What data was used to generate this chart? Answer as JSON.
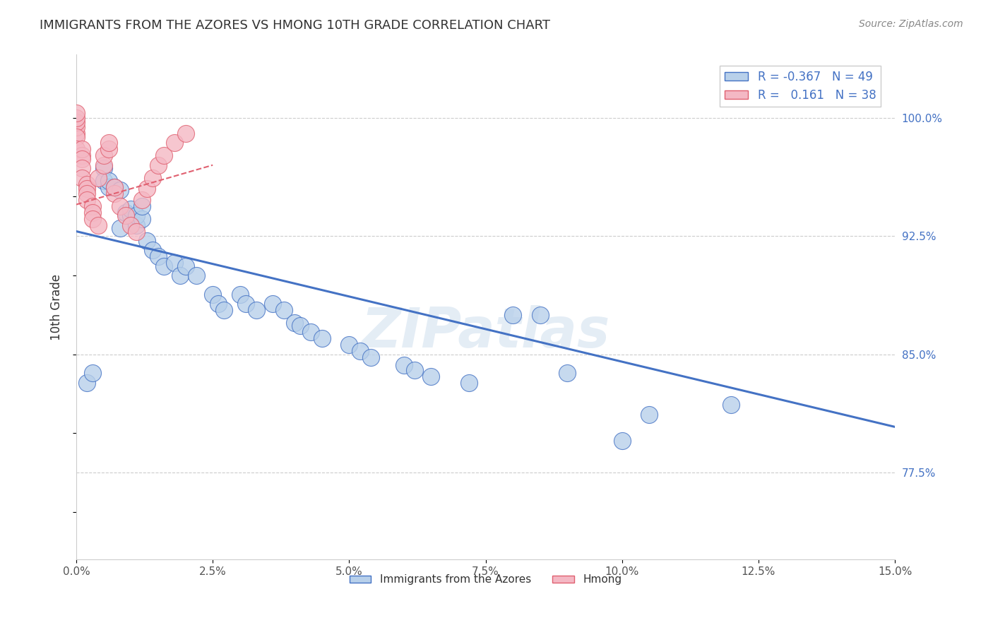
{
  "title": "IMMIGRANTS FROM THE AZORES VS HMONG 10TH GRADE CORRELATION CHART",
  "source": "Source: ZipAtlas.com",
  "ylabel": "10th Grade",
  "ytick_labels": [
    "77.5%",
    "85.0%",
    "92.5%",
    "100.0%"
  ],
  "ytick_values": [
    0.775,
    0.85,
    0.925,
    1.0
  ],
  "xmin": 0.0,
  "xmax": 0.15,
  "ymin": 0.72,
  "ymax": 1.04,
  "legend_R_blue": "-0.367",
  "legend_N_blue": "49",
  "legend_R_pink": "0.161",
  "legend_N_pink": "38",
  "blue_fill": "#b8d0ea",
  "pink_fill": "#f4b8c4",
  "line_blue": "#4472c4",
  "line_pink": "#e06070",
  "watermark": "ZIPatlas",
  "blue_scatter_x": [
    0.002,
    0.003,
    0.005,
    0.005,
    0.006,
    0.006,
    0.007,
    0.008,
    0.008,
    0.009,
    0.01,
    0.01,
    0.011,
    0.011,
    0.012,
    0.012,
    0.013,
    0.014,
    0.015,
    0.016,
    0.018,
    0.019,
    0.02,
    0.022,
    0.025,
    0.026,
    0.027,
    0.03,
    0.031,
    0.033,
    0.036,
    0.038,
    0.04,
    0.041,
    0.043,
    0.045,
    0.05,
    0.052,
    0.054,
    0.06,
    0.062,
    0.065,
    0.072,
    0.08,
    0.085,
    0.09,
    0.1,
    0.105,
    0.12
  ],
  "blue_scatter_y": [
    0.832,
    0.838,
    0.968,
    0.96,
    0.956,
    0.96,
    0.956,
    0.93,
    0.954,
    0.94,
    0.938,
    0.942,
    0.932,
    0.938,
    0.936,
    0.944,
    0.922,
    0.916,
    0.912,
    0.906,
    0.908,
    0.9,
    0.906,
    0.9,
    0.888,
    0.882,
    0.878,
    0.888,
    0.882,
    0.878,
    0.882,
    0.878,
    0.87,
    0.868,
    0.864,
    0.86,
    0.856,
    0.852,
    0.848,
    0.843,
    0.84,
    0.836,
    0.832,
    0.875,
    0.875,
    0.838,
    0.795,
    0.812,
    0.818
  ],
  "pink_scatter_x": [
    0.0,
    0.0,
    0.0,
    0.0,
    0.0,
    0.0,
    0.0,
    0.001,
    0.001,
    0.001,
    0.001,
    0.001,
    0.002,
    0.002,
    0.002,
    0.002,
    0.003,
    0.003,
    0.003,
    0.004,
    0.004,
    0.005,
    0.005,
    0.006,
    0.006,
    0.007,
    0.007,
    0.008,
    0.009,
    0.01,
    0.011,
    0.012,
    0.013,
    0.014,
    0.015,
    0.016,
    0.018,
    0.02
  ],
  "pink_scatter_y": [
    0.99,
    0.994,
    0.997,
    1.0,
    1.003,
    0.988,
    0.98,
    0.976,
    0.98,
    0.974,
    0.968,
    0.962,
    0.958,
    0.955,
    0.952,
    0.948,
    0.944,
    0.94,
    0.936,
    0.932,
    0.962,
    0.97,
    0.976,
    0.98,
    0.984,
    0.952,
    0.956,
    0.944,
    0.938,
    0.932,
    0.928,
    0.948,
    0.955,
    0.962,
    0.97,
    0.976,
    0.984,
    0.99
  ],
  "blue_line_x": [
    0.0,
    0.15
  ],
  "blue_line_y": [
    0.928,
    0.804
  ],
  "pink_line_x": [
    0.0,
    0.025
  ],
  "pink_line_y": [
    0.945,
    0.97
  ],
  "legend_blue_label": "R = -0.367   N = 49",
  "legend_pink_label": "R =   0.161   N = 38",
  "bottom_blue_label": "Immigrants from the Azores",
  "bottom_pink_label": "Hmong"
}
